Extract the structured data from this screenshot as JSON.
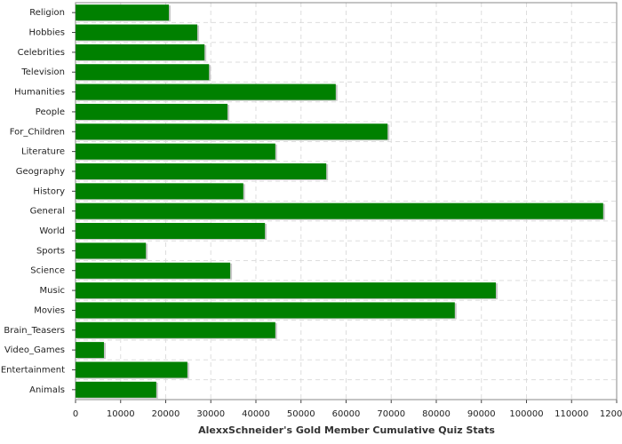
{
  "chart_data": {
    "type": "hbar",
    "x_label": "AlexxSchneider's Gold Member Cumulative Quiz Stats",
    "categories": [
      "Religion",
      "Hobbies",
      "Celebrities",
      "Television",
      "Humanities",
      "People",
      "For_Children",
      "Literature",
      "Geography",
      "History",
      "General",
      "World",
      "Sports",
      "Science",
      "Music",
      "Movies",
      "Brain_Teasers",
      "Video_Games",
      "Entertainment",
      "Animals"
    ],
    "values": [
      20700,
      27000,
      28600,
      29600,
      57700,
      33700,
      69200,
      44300,
      55600,
      37200,
      117000,
      42000,
      15600,
      34300,
      93200,
      84100,
      44300,
      6300,
      24800,
      17900
    ],
    "color": "#008000",
    "xlim": [
      0,
      120000
    ],
    "xticks": [
      0,
      10000,
      20000,
      30000,
      40000,
      50000,
      60000,
      70000,
      80000,
      90000,
      100000,
      110000,
      120000
    ],
    "grid": true
  }
}
